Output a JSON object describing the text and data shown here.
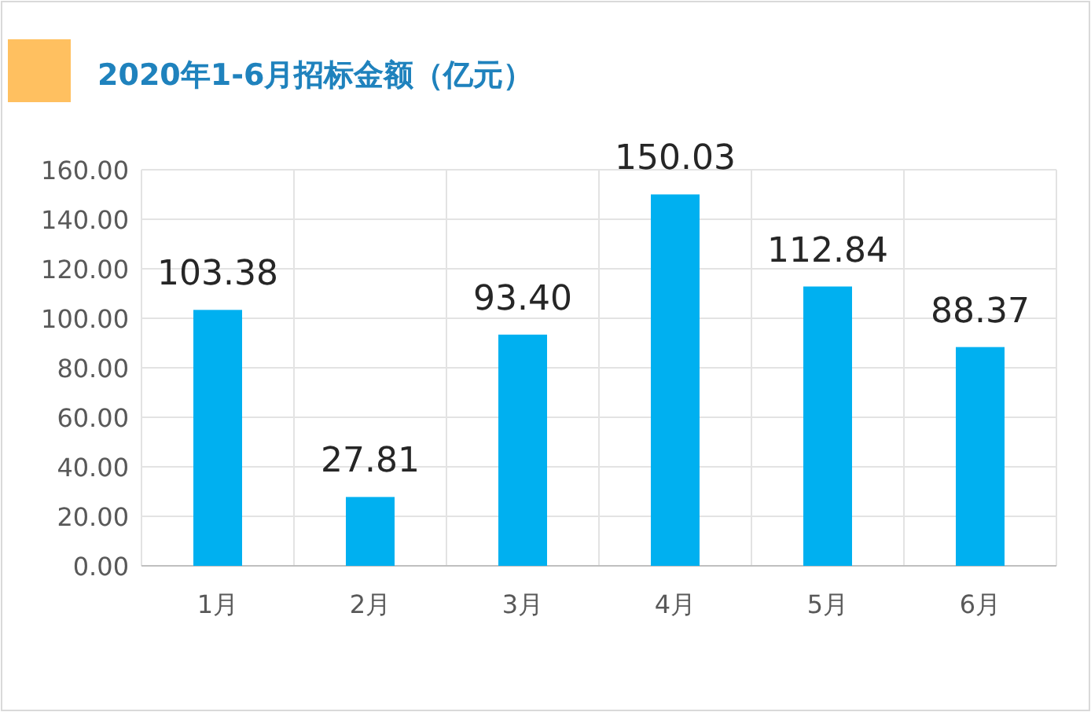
{
  "chart_data": {
    "type": "bar",
    "title": "2020年1-6月招标金额（亿元）",
    "categories": [
      "1月",
      "2月",
      "3月",
      "4月",
      "5月",
      "6月"
    ],
    "values": [
      103.38,
      27.81,
      93.4,
      150.03,
      112.84,
      88.37
    ],
    "value_labels": [
      "103.38",
      "27.81",
      "93.40",
      "150.03",
      "112.84",
      "88.37"
    ],
    "color": "#00b0f0",
    "grid": true,
    "ylim": [
      0,
      160
    ],
    "yticks": [
      {
        "value": 0,
        "label": "0.00"
      },
      {
        "value": 20,
        "label": "20.00"
      },
      {
        "value": 40,
        "label": "40.00"
      },
      {
        "value": 60,
        "label": "60.00"
      },
      {
        "value": 80,
        "label": "80.00"
      },
      {
        "value": 100,
        "label": "100.00"
      },
      {
        "value": 120,
        "label": "120.00"
      },
      {
        "value": 140,
        "label": "140.00"
      },
      {
        "value": 160,
        "label": "160.00"
      }
    ]
  }
}
